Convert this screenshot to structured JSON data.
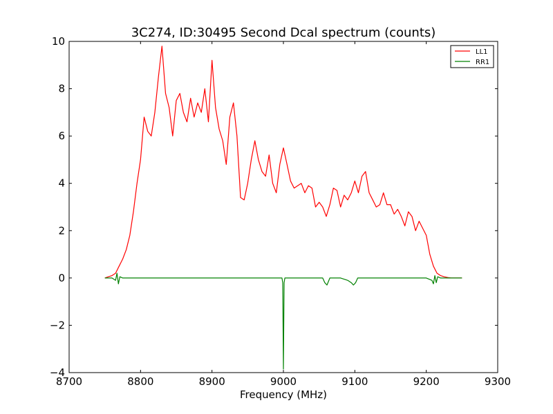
{
  "chart_data": {
    "type": "line",
    "title": "3C274, ID:30495 Second Dcal spectrum (counts)",
    "xlabel": "Frequency (MHz)",
    "ylabel": "",
    "xlim": [
      8700,
      9300
    ],
    "ylim": [
      -4,
      10
    ],
    "xticks": [
      "8700",
      "8800",
      "8900",
      "9000",
      "9100",
      "9200",
      "9300"
    ],
    "yticks": [
      "−4",
      "−2",
      "0",
      "2",
      "4",
      "6",
      "8",
      "10"
    ],
    "legend_position": "upper-right",
    "grid": false,
    "series": [
      {
        "name": "LL1",
        "color": "#ff0000",
        "x": [
          8750,
          8755,
          8760,
          8765,
          8770,
          8775,
          8780,
          8785,
          8790,
          8795,
          8800,
          8805,
          8810,
          8815,
          8820,
          8825,
          8830,
          8835,
          8840,
          8845,
          8850,
          8855,
          8860,
          8865,
          8870,
          8875,
          8880,
          8885,
          8890,
          8895,
          8900,
          8905,
          8910,
          8915,
          8920,
          8925,
          8930,
          8935,
          8940,
          8945,
          8950,
          8955,
          8960,
          8965,
          8970,
          8975,
          8980,
          8985,
          8990,
          8995,
          9000,
          9005,
          9010,
          9015,
          9020,
          9025,
          9030,
          9035,
          9040,
          9045,
          9050,
          9055,
          9060,
          9065,
          9070,
          9075,
          9080,
          9085,
          9090,
          9095,
          9100,
          9105,
          9110,
          9115,
          9120,
          9125,
          9130,
          9135,
          9140,
          9145,
          9150,
          9155,
          9160,
          9165,
          9170,
          9175,
          9180,
          9185,
          9190,
          9195,
          9200,
          9205,
          9210,
          9215,
          9220,
          9225,
          9230,
          9235,
          9240,
          9245,
          9250
        ],
        "y": [
          0.0,
          0.05,
          0.1,
          0.2,
          0.5,
          0.8,
          1.2,
          1.8,
          2.8,
          4.0,
          5.0,
          6.8,
          6.2,
          6.0,
          7.0,
          8.5,
          9.8,
          7.8,
          7.2,
          6.0,
          7.5,
          7.8,
          7.0,
          6.6,
          7.6,
          6.8,
          7.4,
          7.0,
          8.0,
          6.6,
          9.2,
          7.2,
          6.3,
          5.8,
          4.8,
          6.8,
          7.4,
          6.0,
          3.4,
          3.3,
          4.0,
          5.0,
          5.8,
          5.0,
          4.5,
          4.3,
          5.2,
          4.0,
          3.6,
          4.8,
          5.5,
          4.8,
          4.1,
          3.8,
          3.9,
          4.0,
          3.6,
          3.9,
          3.8,
          3.0,
          3.2,
          3.0,
          2.6,
          3.1,
          3.8,
          3.7,
          3.0,
          3.5,
          3.3,
          3.6,
          4.1,
          3.6,
          4.3,
          4.5,
          3.6,
          3.3,
          3.0,
          3.1,
          3.6,
          3.1,
          3.1,
          2.7,
          2.9,
          2.6,
          2.2,
          2.8,
          2.6,
          2.0,
          2.4,
          2.1,
          1.8,
          1.0,
          0.5,
          0.2,
          0.1,
          0.05,
          0.02,
          0.0,
          0.0,
          0.0,
          0.0
        ]
      },
      {
        "name": "RR1",
        "color": "#008000",
        "x": [
          8750,
          8760,
          8765,
          8767,
          8769,
          8771,
          8775,
          8800,
          8850,
          8900,
          8950,
          8998,
          8999,
          9000,
          9001,
          9002,
          9050,
          9055,
          9058,
          9061,
          9065,
          9080,
          9090,
          9095,
          9098,
          9101,
          9104,
          9110,
          9150,
          9200,
          9208,
          9210,
          9212,
          9214,
          9216,
          9220,
          9250
        ],
        "y": [
          0.0,
          0.0,
          -0.1,
          0.2,
          -0.25,
          0.05,
          0.0,
          0.0,
          0.0,
          0.0,
          0.0,
          0.0,
          -0.2,
          -3.85,
          -0.2,
          0.0,
          0.0,
          0.0,
          -0.2,
          -0.3,
          0.0,
          0.0,
          -0.1,
          -0.2,
          -0.3,
          -0.2,
          0.0,
          0.0,
          0.0,
          0.0,
          -0.1,
          -0.25,
          0.1,
          -0.2,
          0.05,
          0.0,
          0.0
        ]
      }
    ]
  }
}
